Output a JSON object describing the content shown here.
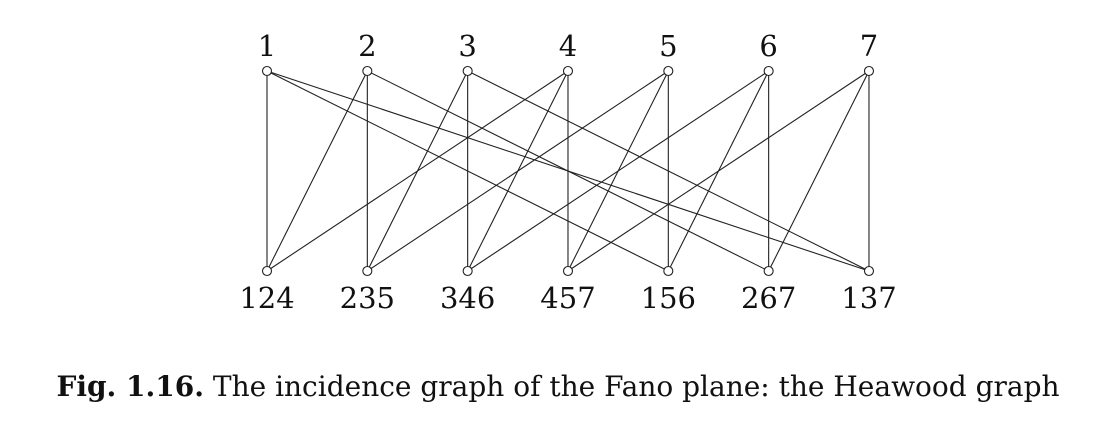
{
  "diagram": {
    "points": [
      "1",
      "2",
      "3",
      "4",
      "5",
      "6",
      "7"
    ],
    "lines": [
      "124",
      "235",
      "346",
      "457",
      "156",
      "267",
      "137"
    ],
    "incidences": [
      [
        "1",
        "124"
      ],
      [
        "1",
        "156"
      ],
      [
        "1",
        "137"
      ],
      [
        "2",
        "124"
      ],
      [
        "2",
        "235"
      ],
      [
        "2",
        "267"
      ],
      [
        "3",
        "235"
      ],
      [
        "3",
        "346"
      ],
      [
        "3",
        "137"
      ],
      [
        "4",
        "124"
      ],
      [
        "4",
        "346"
      ],
      [
        "4",
        "457"
      ],
      [
        "5",
        "235"
      ],
      [
        "5",
        "457"
      ],
      [
        "5",
        "156"
      ],
      [
        "6",
        "346"
      ],
      [
        "6",
        "156"
      ],
      [
        "6",
        "267"
      ],
      [
        "7",
        "457"
      ],
      [
        "7",
        "267"
      ],
      [
        "7",
        "137"
      ]
    ]
  },
  "caption": {
    "label": "Fig. 1.16.",
    "text": "The incidence graph of the Fano plane: the Heawood graph"
  }
}
